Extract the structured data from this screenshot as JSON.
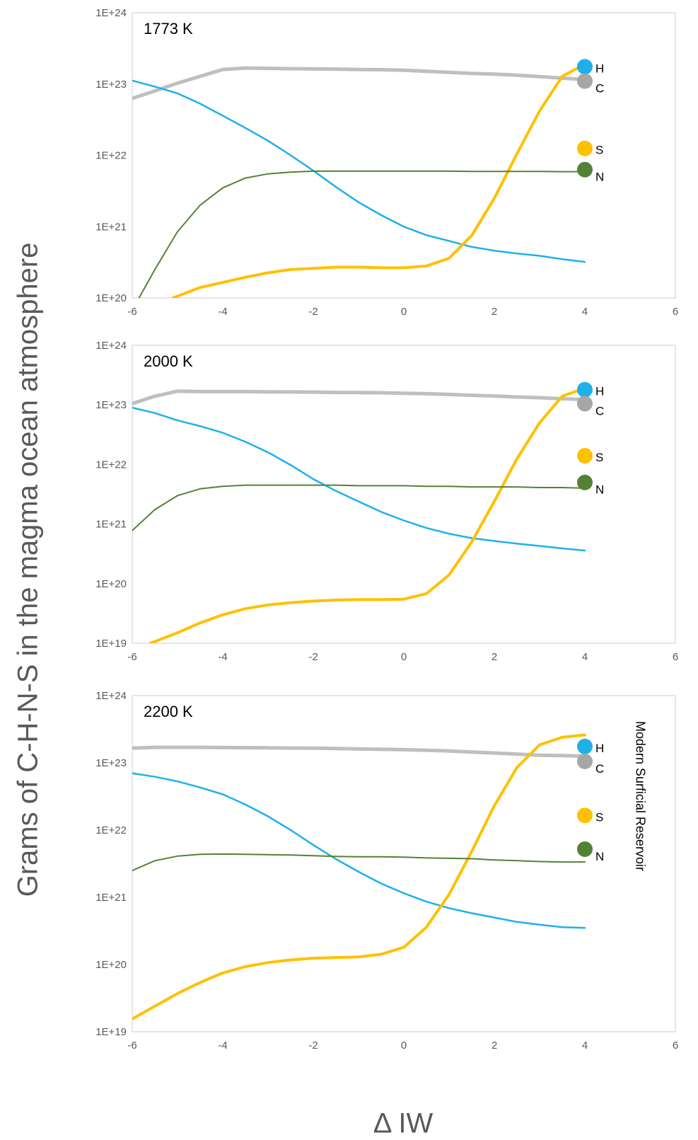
{
  "y_axis_title": "Grams of C-H-N-S in the magma ocean atmosphere",
  "x_axis_title": "Δ IW",
  "side_label": "Modern Surficial Reservoir",
  "chart_data": [
    {
      "type": "line",
      "title": "1773 K",
      "xlim": [
        -6,
        6
      ],
      "xticks": [
        "-6",
        "-4",
        "-2",
        "0",
        "2",
        "4",
        "6"
      ],
      "ylim": [
        1e+20,
        1e+24
      ],
      "yscale": "log",
      "yticks": [
        "1E+20",
        "1E+21",
        "1E+22",
        "1E+23",
        "1E+24"
      ],
      "grid": false,
      "series": [
        {
          "name": "C",
          "color": "#bfbfbf",
          "x": [
            -6,
            -5.5,
            -5,
            -4.5,
            -4,
            -3.5,
            -3,
            -2.5,
            -2,
            -1.5,
            -1,
            -0.5,
            0,
            0.5,
            1,
            1.5,
            2,
            2.5,
            3,
            3.5,
            4
          ],
          "y": [
            6.3e+22,
            8e+22,
            1.03e+23,
            1.28e+23,
            1.6e+23,
            1.68e+23,
            1.66e+23,
            1.64e+23,
            1.63e+23,
            1.62e+23,
            1.6e+23,
            1.59e+23,
            1.56e+23,
            1.51e+23,
            1.46e+23,
            1.41e+23,
            1.38e+23,
            1.33e+23,
            1.27e+23,
            1.21e+23,
            1.15e+23
          ]
        },
        {
          "name": "H",
          "color": "#1fb0ea",
          "x": [
            -6,
            -5.5,
            -5,
            -4.5,
            -4,
            -3.5,
            -3,
            -2.5,
            -2,
            -1.5,
            -1,
            -0.5,
            0,
            0.5,
            1,
            1.5,
            2,
            2.5,
            3,
            3.5,
            4
          ],
          "y": [
            1.12e+23,
            9.2e+22,
            7.4e+22,
            5.3e+22,
            3.6e+22,
            2.42e+22,
            1.6e+22,
            1e+22,
            6.1e+21,
            3.6e+21,
            2.2e+21,
            1.45e+21,
            1e+21,
            7.6e+20,
            6.3e+20,
            5.2e+20,
            4.6e+20,
            4.2e+20,
            3.9e+20,
            3.5e+20,
            3.2e+20
          ]
        },
        {
          "name": "S",
          "color": "#ffc000",
          "x": [
            -5.1,
            -4.5,
            -4,
            -3.5,
            -3,
            -2.5,
            -2,
            -1.5,
            -1,
            -0.5,
            0,
            0.5,
            1,
            1.5,
            2,
            2.5,
            3,
            3.5,
            4
          ],
          "y": [
            1e+20,
            1.4e+20,
            1.65e+20,
            1.95e+20,
            2.25e+20,
            2.5e+20,
            2.6e+20,
            2.7e+20,
            2.7e+20,
            2.65e+20,
            2.65e+20,
            2.8e+20,
            3.6e+20,
            7.5e+20,
            2.5e+21,
            1.05e+22,
            4.2e+22,
            1.28e+23,
            1.9e+23
          ]
        },
        {
          "name": "N",
          "color": "#548235",
          "x": [
            -5.85,
            -5.5,
            -5,
            -4.5,
            -4,
            -3.5,
            -3,
            -2.5,
            -2,
            -1.5,
            -1,
            -0.5,
            0,
            0.5,
            1,
            1.5,
            2,
            2.5,
            3,
            3.5,
            4
          ],
          "y": [
            1e+20,
            2.5e+20,
            8.5e+20,
            2e+21,
            3.5e+21,
            4.8e+21,
            5.5e+21,
            5.8e+21,
            6e+21,
            6e+21,
            6e+21,
            6e+21,
            6e+21,
            6e+21,
            6e+21,
            5.95e+21,
            5.95e+21,
            5.95e+21,
            5.95e+21,
            5.9e+21,
            5.9e+21
          ]
        }
      ],
      "markers": [
        {
          "label": "H",
          "color": "#1fb0ea",
          "x": 4,
          "y": 1.75e+23
        },
        {
          "label": "C",
          "color": "#a6a6a6",
          "x": 4,
          "y": 1.1e+23
        },
        {
          "label": "S",
          "color": "#ffc000",
          "x": 4,
          "y": 1.25e+22
        },
        {
          "label": "N",
          "color": "#548235",
          "x": 4,
          "y": 6.3e+21
        }
      ]
    },
    {
      "type": "line",
      "title": "2000 K",
      "xlim": [
        -6,
        6
      ],
      "xticks": [
        "-6",
        "-4",
        "-2",
        "0",
        "2",
        "4",
        "6"
      ],
      "ylim": [
        1e+19,
        1e+24
      ],
      "yscale": "log",
      "yticks": [
        "1E+19",
        "1E+20",
        "1E+21",
        "1E+22",
        "1E+23",
        "1E+24"
      ],
      "grid": false,
      "series": [
        {
          "name": "C",
          "color": "#bfbfbf",
          "x": [
            -6,
            -5.5,
            -5,
            -4.5,
            -4,
            -3.5,
            -3,
            -2.5,
            -2,
            -1.5,
            -1,
            -0.5,
            0,
            0.5,
            1,
            1.5,
            2,
            2.5,
            3,
            3.5,
            4
          ],
          "y": [
            1.05e+23,
            1.4e+23,
            1.7e+23,
            1.67e+23,
            1.67e+23,
            1.67e+23,
            1.66e+23,
            1.65e+23,
            1.64e+23,
            1.62e+23,
            1.61e+23,
            1.6e+23,
            1.57e+23,
            1.54e+23,
            1.5e+23,
            1.45e+23,
            1.41e+23,
            1.36e+23,
            1.32e+23,
            1.27e+23,
            1.23e+23
          ]
        },
        {
          "name": "H",
          "color": "#1fb0ea",
          "x": [
            -6,
            -5.5,
            -5,
            -4.5,
            -4,
            -3.5,
            -3,
            -2.5,
            -2,
            -1.5,
            -1,
            -0.5,
            0,
            0.5,
            1,
            1.5,
            2,
            2.5,
            3,
            3.5,
            4
          ],
          "y": [
            9e+22,
            7.3e+22,
            5.5e+22,
            4.4e+22,
            3.4e+22,
            2.4e+22,
            1.6e+22,
            9.8e+21,
            5.7e+21,
            3.6e+21,
            2.4e+21,
            1.6e+21,
            1.15e+21,
            8.6e+20,
            6.9e+20,
            5.8e+20,
            5.2e+20,
            4.7e+20,
            4.3e+20,
            3.9e+20,
            3.6e+20
          ]
        },
        {
          "name": "S",
          "color": "#ffc000",
          "x": [
            -5.6,
            -5,
            -4.5,
            -4,
            -3.5,
            -3,
            -2.5,
            -2,
            -1.5,
            -1,
            -0.5,
            0,
            0.5,
            1,
            1.5,
            2,
            2.5,
            3,
            3.5,
            4
          ],
          "y": [
            1e+19,
            1.5e+19,
            2.2e+19,
            3e+19,
            3.8e+19,
            4.4e+19,
            4.8e+19,
            5.1e+19,
            5.3e+19,
            5.4e+19,
            5.4e+19,
            5.5e+19,
            6.8e+19,
            1.4e+20,
            5e+20,
            2.4e+21,
            1.25e+22,
            5e+22,
            1.4e+23,
            1.9e+23
          ]
        },
        {
          "name": "N",
          "color": "#548235",
          "x": [
            -6,
            -5.5,
            -5,
            -4.5,
            -4,
            -3.5,
            -3,
            -2.5,
            -2,
            -1.5,
            -1,
            -0.5,
            0,
            0.5,
            1,
            1.5,
            2,
            2.5,
            3,
            3.5,
            4
          ],
          "y": [
            7.8e+20,
            1.75e+21,
            3e+21,
            3.9e+21,
            4.3e+21,
            4.5e+21,
            4.5e+21,
            4.5e+21,
            4.5e+21,
            4.5e+21,
            4.4e+21,
            4.4e+21,
            4.4e+21,
            4.3e+21,
            4.3e+21,
            4.2e+21,
            4.2e+21,
            4.2e+21,
            4.1e+21,
            4.1e+21,
            4e+21
          ]
        }
      ],
      "markers": [
        {
          "label": "H",
          "color": "#1fb0ea",
          "x": 4,
          "y": 1.8e+23
        },
        {
          "label": "C",
          "color": "#a6a6a6",
          "x": 4,
          "y": 1.05e+23
        },
        {
          "label": "S",
          "color": "#ffc000",
          "x": 4,
          "y": 1.4e+22
        },
        {
          "label": "N",
          "color": "#548235",
          "x": 4,
          "y": 5e+21
        }
      ]
    },
    {
      "type": "line",
      "title": "2200 K",
      "xlim": [
        -6,
        6
      ],
      "xticks": [
        "-6",
        "-4",
        "-2",
        "0",
        "2",
        "4",
        "6"
      ],
      "ylim": [
        1e+19,
        1e+24
      ],
      "yscale": "log",
      "yticks": [
        "1E+19",
        "1E+20",
        "1E+21",
        "1E+22",
        "1E+23",
        "1E+24"
      ],
      "grid": false,
      "series": [
        {
          "name": "C",
          "color": "#bfbfbf",
          "x": [
            -6,
            -5.5,
            -5,
            -4.5,
            -4,
            -3.5,
            -3,
            -2.5,
            -2,
            -1.5,
            -1,
            -0.5,
            0,
            0.5,
            1,
            1.5,
            2,
            2.5,
            3,
            3.5,
            4
          ],
          "y": [
            1.65e+23,
            1.7e+23,
            1.7e+23,
            1.7e+23,
            1.69e+23,
            1.68e+23,
            1.67e+23,
            1.66e+23,
            1.65e+23,
            1.63e+23,
            1.61e+23,
            1.59e+23,
            1.57e+23,
            1.54e+23,
            1.5e+23,
            1.45e+23,
            1.4e+23,
            1.35e+23,
            1.3e+23,
            1.28e+23,
            1.26e+23
          ]
        },
        {
          "name": "H",
          "color": "#1fb0ea",
          "x": [
            -6,
            -5.5,
            -5,
            -4.5,
            -4,
            -3.5,
            -3,
            -2.5,
            -2,
            -1.5,
            -1,
            -0.5,
            0,
            0.5,
            1,
            1.5,
            2,
            2.5,
            3,
            3.5,
            4
          ],
          "y": [
            7e+22,
            6.2e+22,
            5.3e+22,
            4.3e+22,
            3.4e+22,
            2.4e+22,
            1.6e+22,
            1e+22,
            6e+21,
            3.7e+21,
            2.4e+21,
            1.6e+21,
            1.15e+21,
            8.6e+20,
            6.9e+20,
            5.8e+20,
            5e+20,
            4.3e+20,
            3.9e+20,
            3.6e+20,
            3.5e+20
          ]
        },
        {
          "name": "S",
          "color": "#ffc000",
          "x": [
            -6,
            -5.5,
            -5,
            -4.5,
            -4,
            -3.5,
            -3,
            -2.5,
            -2,
            -1.5,
            -1,
            -0.5,
            0,
            0.5,
            1,
            1.5,
            2,
            2.5,
            3,
            3.5,
            4
          ],
          "y": [
            1.55e+19,
            2.4e+19,
            3.7e+19,
            5.4e+19,
            7.5e+19,
            9.3e+19,
            1.07e+20,
            1.17e+20,
            1.24e+20,
            1.27e+20,
            1.3e+20,
            1.42e+20,
            1.8e+20,
            3.6e+20,
            1.1e+21,
            4.8e+21,
            2.3e+22,
            8.5e+22,
            1.85e+23,
            2.4e+23,
            2.6e+23
          ]
        },
        {
          "name": "N",
          "color": "#548235",
          "x": [
            -6,
            -5.5,
            -5,
            -4.5,
            -4,
            -3.5,
            -3,
            -2.5,
            -2,
            -1.5,
            -1,
            -0.5,
            0,
            0.5,
            1,
            1.5,
            2,
            2.5,
            3,
            3.5,
            4
          ],
          "y": [
            2.5e+21,
            3.5e+21,
            4.1e+21,
            4.35e+21,
            4.4e+21,
            4.35e+21,
            4.3e+21,
            4.25e+21,
            4.15e+21,
            4.05e+21,
            4e+21,
            4e+21,
            3.95e+21,
            3.85e+21,
            3.8e+21,
            3.75e+21,
            3.6e+21,
            3.5e+21,
            3.4e+21,
            3.35e+21,
            3.35e+21
          ]
        }
      ],
      "markers": [
        {
          "label": "H",
          "color": "#1fb0ea",
          "x": 4,
          "y": 1.75e+23
        },
        {
          "label": "C",
          "color": "#a6a6a6",
          "x": 4,
          "y": 1.05e+23
        },
        {
          "label": "S",
          "color": "#ffc000",
          "x": 4,
          "y": 1.65e+22
        },
        {
          "label": "N",
          "color": "#548235",
          "x": 4,
          "y": 5.2e+21
        }
      ]
    }
  ]
}
